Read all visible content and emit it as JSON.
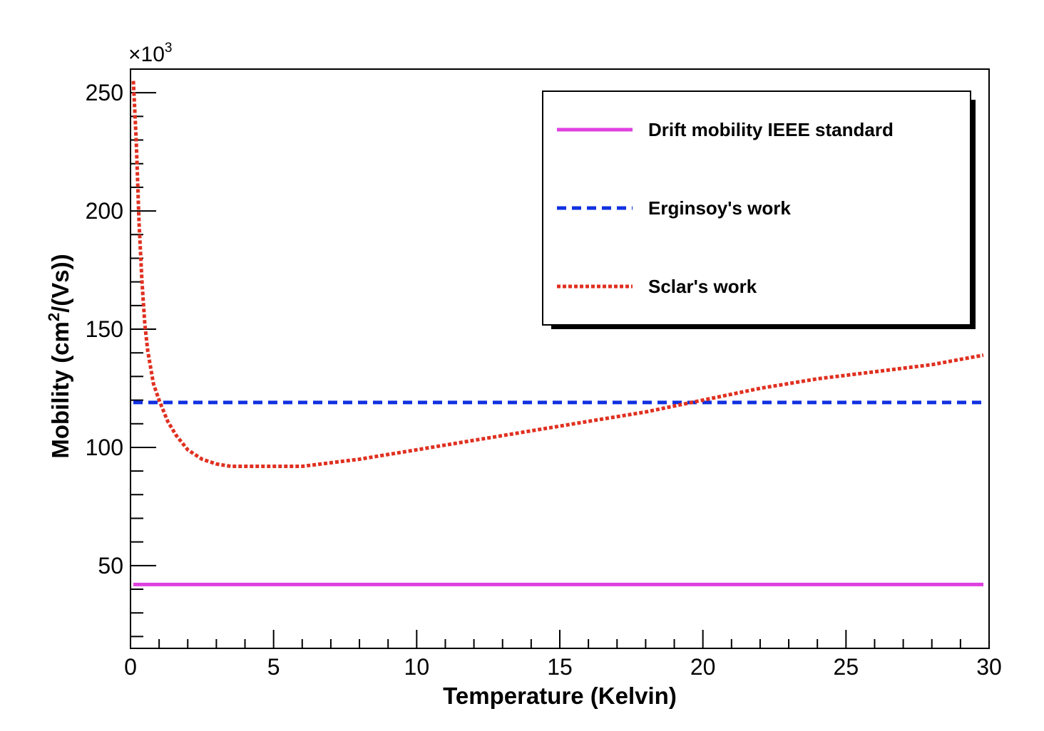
{
  "chart_data": {
    "type": "line",
    "title": "",
    "xlabel": "Temperature (Kelvin)",
    "ylabel_main": "Mobility (cm",
    "ylabel_sup": "2",
    "ylabel_tail": "/(Vs))",
    "y_multiplier": "×10",
    "y_multiplier_exp": "3",
    "xlim": [
      0,
      30
    ],
    "ylim": [
      15,
      260
    ],
    "x_ticks": [
      "0",
      "5",
      "10",
      "15",
      "20",
      "25",
      "30"
    ],
    "y_ticks": [
      "50",
      "100",
      "150",
      "200",
      "250"
    ],
    "grid": false,
    "legend_position": "top-right",
    "series": [
      {
        "name": "Drift mobility IEEE standard",
        "color": "#e040e0",
        "style": "solid",
        "x": [
          0.1,
          29.8
        ],
        "y": [
          42,
          42
        ]
      },
      {
        "name": "Erginsoy's work",
        "color": "#1030e0",
        "style": "dashed",
        "x": [
          0.1,
          29.8
        ],
        "y": [
          119,
          119
        ]
      },
      {
        "name": "Sclar's work",
        "color": "#e03020",
        "style": "dotted",
        "x": [
          0.1,
          0.2,
          0.3,
          0.4,
          0.5,
          0.6,
          0.8,
          1.0,
          1.3,
          1.6,
          2.0,
          2.5,
          3.0,
          3.5,
          4.0,
          4.5,
          5.0,
          6.0,
          7.0,
          8.0,
          9.0,
          10.0,
          12.0,
          14.0,
          16.0,
          18.0,
          20.0,
          22.0,
          24.0,
          26.0,
          28.0,
          29.8
        ],
        "y": [
          255,
          230,
          195,
          170,
          152,
          141,
          127,
          120,
          111,
          105,
          99,
          95,
          93,
          92,
          92,
          92,
          92,
          92,
          93.5,
          95,
          97,
          99,
          103,
          107,
          111,
          115,
          120,
          125,
          129,
          132,
          135,
          139
        ]
      }
    ]
  }
}
